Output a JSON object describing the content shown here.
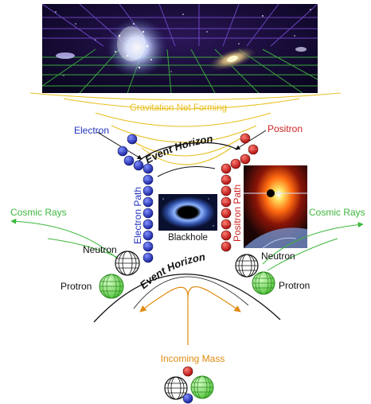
{
  "diagram": {
    "gravitation_label": "Gravitation Net Forming",
    "event_horizon_top": "Event Horizon",
    "event_horizon_bottom": "Event Horizon",
    "electron_label": "Electron",
    "positron_label": "Positron",
    "electron_path_label": "Electron Path",
    "positron_path_label": "Positron Path",
    "blackhole_label": "Blackhole",
    "cosmic_rays_left": "Cosmic Rays",
    "cosmic_rays_right": "Cosmic Rays",
    "neutron_left": "Neutron",
    "neutron_right": "Neutron",
    "protron_left": "Protron",
    "protron_right": "Protron",
    "incoming_mass_label": "Incoming Mass"
  },
  "colors": {
    "electron": "#2233bb",
    "positron": "#cc2222",
    "gravitation": "#e8c020",
    "cosmic_rays": "#3cb83c",
    "incoming_mass": "#e08a10",
    "space_bg": "#14092e",
    "grid_purple": "#7a4fd8",
    "grid_green": "#3fb83f"
  }
}
